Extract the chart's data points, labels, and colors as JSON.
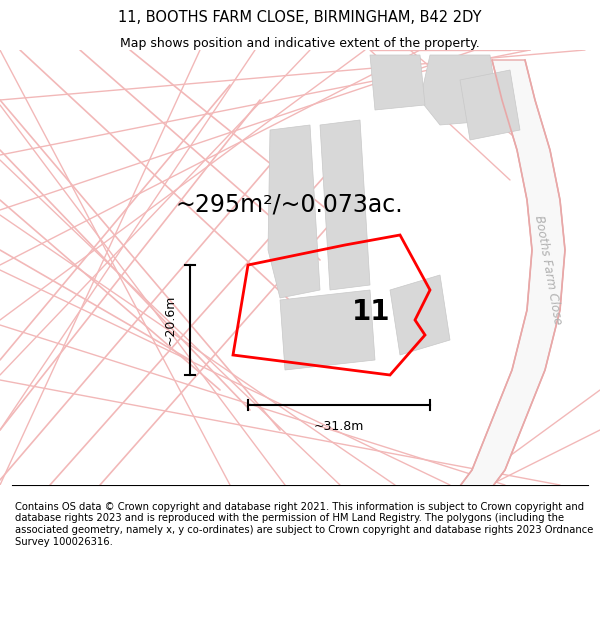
{
  "title_line1": "11, BOOTHS FARM CLOSE, BIRMINGHAM, B42 2DY",
  "title_line2": "Map shows position and indicative extent of the property.",
  "footer": "Contains OS data © Crown copyright and database right 2021. This information is subject to Crown copyright and database rights 2023 and is reproduced with the permission of HM Land Registry. The polygons (including the associated geometry, namely x, y co-ordinates) are subject to Crown copyright and database rights 2023 Ordnance Survey 100026316.",
  "area_text": "~295m²/~0.073ac.",
  "width_label": "~31.8m",
  "height_label": "~20.6m",
  "plot_label": "11",
  "road_label": "Booths Farm Close",
  "bg_color": "#ffffff",
  "map_bg": "#ffffff",
  "road_color": "#f5c0c0",
  "title_fontsize": 10.5,
  "subtitle_fontsize": 9,
  "area_fontsize": 17,
  "label_fontsize": 9,
  "road_label_fontsize": 9,
  "plot_label_fontsize": 20,
  "footer_fontsize": 7.2
}
